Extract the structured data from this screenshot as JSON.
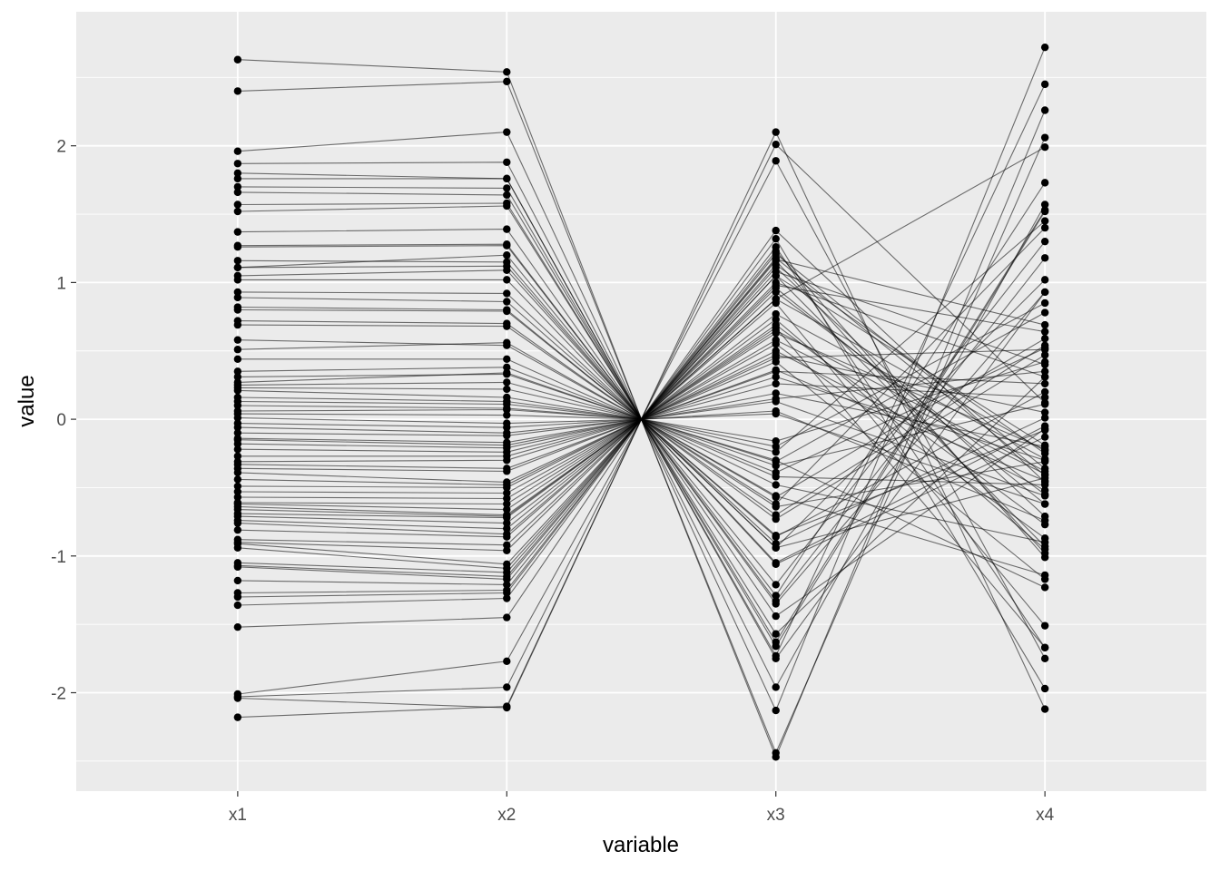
{
  "chart_data": {
    "type": "line",
    "subtype": "parallel-coordinates",
    "xlabel": "variable",
    "ylabel": "value",
    "categories": [
      "x1",
      "x2",
      "x3",
      "x4"
    ],
    "x_positions": [
      1,
      2,
      3,
      4
    ],
    "xlim": [
      0.4,
      4.6
    ],
    "ylim": [
      -2.72,
      2.98
    ],
    "y_ticks": [
      -2,
      -1,
      0,
      1,
      2
    ],
    "y_tick_labels": [
      "-2",
      "-1",
      "0",
      "1",
      "2"
    ],
    "grid": true,
    "legend": "none",
    "colors": {
      "panel": "#ebebeb",
      "grid": "#ffffff",
      "line": "#000000",
      "point": "#000000"
    },
    "series": [
      {
        "values": [
          2.63,
          2.54,
          0.63,
          -0.22
        ]
      },
      {
        "values": [
          2.4,
          2.47,
          -0.39,
          0.52
        ]
      },
      {
        "values": [
          1.96,
          2.1,
          -1.57,
          0.31
        ]
      },
      {
        "values": [
          1.87,
          1.88,
          1.05,
          -0.93
        ]
      },
      {
        "values": [
          1.8,
          1.76,
          -0.62,
          1.4
        ]
      },
      {
        "values": [
          1.76,
          1.76,
          1.38,
          -0.46
        ]
      },
      {
        "values": [
          1.7,
          1.69,
          0.98,
          0.64
        ]
      },
      {
        "values": [
          1.66,
          1.64,
          -2.44,
          2.06
        ]
      },
      {
        "values": [
          1.57,
          1.58,
          0.31,
          -0.3
        ]
      },
      {
        "values": [
          1.52,
          1.56,
          2.01,
          0.12
        ]
      },
      {
        "values": [
          1.37,
          1.39,
          -0.3,
          -1.23
        ]
      },
      {
        "values": [
          1.27,
          1.28,
          0.88,
          -0.23
        ]
      },
      {
        "values": [
          1.26,
          1.27,
          -1.33,
          1.18
        ]
      },
      {
        "values": [
          1.16,
          1.15,
          -0.42,
          -0.48
        ]
      },
      {
        "values": [
          1.11,
          1.12,
          1.08,
          0.4
        ]
      },
      {
        "values": [
          1.05,
          1.09,
          0.55,
          -0.87
        ]
      },
      {
        "values": [
          1.02,
          1.02,
          -0.86,
          0.2
        ]
      },
      {
        "values": [
          0.93,
          0.92,
          1.21,
          -0.36
        ]
      },
      {
        "values": [
          0.89,
          0.86,
          -1.63,
          1.53
        ]
      },
      {
        "values": [
          0.82,
          0.8,
          0.04,
          -0.62
        ]
      },
      {
        "values": [
          0.8,
          0.79,
          -0.2,
          0.85
        ]
      },
      {
        "values": [
          0.72,
          0.7,
          1.26,
          -1.67
        ]
      },
      {
        "values": [
          0.69,
          0.68,
          0.47,
          0.05
        ]
      },
      {
        "values": [
          0.51,
          0.56,
          -1.06,
          -0.13
        ]
      },
      {
        "values": [
          0.44,
          0.44,
          0.69,
          -0.77
        ]
      },
      {
        "values": [
          0.35,
          0.38,
          -0.57,
          0.59
        ]
      },
      {
        "values": [
          0.31,
          0.33,
          1.16,
          -0.98
        ]
      },
      {
        "values": [
          0.25,
          0.27,
          0.15,
          0.35
        ]
      },
      {
        "values": [
          0.23,
          0.22,
          -1.44,
          -0.07
        ]
      },
      {
        "values": [
          0.21,
          0.16,
          0.88,
          1.99
        ]
      },
      {
        "values": [
          0.13,
          0.11,
          0.58,
          -0.4
        ]
      },
      {
        "values": [
          0.1,
          0.08,
          -0.73,
          0.47
        ]
      },
      {
        "values": [
          0.04,
          0.03,
          0.13,
          -0.56
        ]
      },
      {
        "values": [
          0.01,
          -0.03,
          1.05,
          -0.19
        ]
      },
      {
        "values": [
          -0.03,
          -0.06,
          -0.31,
          0.78
        ]
      },
      {
        "values": [
          -0.06,
          -0.1,
          0.42,
          -1.17
        ]
      },
      {
        "values": [
          -0.1,
          -0.12,
          -0.94,
          1.02
        ]
      },
      {
        "values": [
          -0.14,
          -0.17,
          0.77,
          -0.29
        ]
      },
      {
        "values": [
          -0.18,
          -0.21,
          -1.73,
          2.45
        ]
      },
      {
        "values": [
          -0.22,
          -0.24,
          0.96,
          -0.62
        ]
      },
      {
        "values": [
          -0.27,
          -0.27,
          0.26,
          0.16
        ]
      },
      {
        "values": [
          -0.31,
          -0.3,
          -0.48,
          -0.9
        ]
      },
      {
        "values": [
          -0.33,
          -0.36,
          1.17,
          0.69
        ]
      },
      {
        "values": [
          -0.36,
          -0.38,
          -1.05,
          -0.05
        ]
      },
      {
        "values": [
          -0.39,
          -0.46,
          0.85,
          -1.51
        ]
      },
      {
        "values": [
          -0.49,
          -0.5,
          -0.16,
          0.42
        ]
      },
      {
        "values": [
          -0.53,
          -0.54,
          0.65,
          -0.38
        ]
      },
      {
        "values": [
          -0.57,
          -0.58,
          -1.96,
          1.57
        ]
      },
      {
        "values": [
          -0.61,
          -0.62,
          1.11,
          -0.71
        ]
      },
      {
        "values": [
          -0.62,
          -0.66,
          0.35,
          0.26
        ]
      },
      {
        "values": [
          -0.64,
          -0.7,
          -0.64,
          -0.31
        ]
      },
      {
        "values": [
          -0.66,
          -0.71,
          1.32,
          -1.97
        ]
      },
      {
        "values": [
          -0.69,
          -0.72,
          -1.35,
          0.93
        ]
      },
      {
        "values": [
          -0.71,
          -0.76,
          0.5,
          -0.52
        ]
      },
      {
        "values": [
          -0.74,
          -0.8,
          -0.34,
          0.11
        ]
      },
      {
        "values": [
          -0.76,
          -0.84,
          0.73,
          -0.95
        ]
      },
      {
        "values": [
          -0.88,
          -0.92,
          -1.21,
          1.3
        ]
      },
      {
        "values": [
          -0.9,
          -0.96,
          1.13,
          -0.25
        ]
      },
      {
        "values": [
          -0.91,
          -1.06,
          0.06,
          -0.74
        ]
      },
      {
        "values": [
          -0.94,
          -1.09,
          -1.66,
          1.52
        ]
      },
      {
        "values": [
          -1.05,
          -1.12,
          1.0,
          0.31
        ]
      },
      {
        "values": [
          -1.07,
          -1.15,
          -0.56,
          -1.14
        ]
      },
      {
        "values": [
          -1.08,
          -1.17,
          0.45,
          0.51
        ]
      },
      {
        "values": [
          -1.18,
          -1.21,
          -2.13,
          2.72
        ]
      },
      {
        "values": [
          -1.27,
          -1.25,
          1.18,
          -0.41
        ]
      },
      {
        "values": [
          -1.3,
          -1.27,
          -0.85,
          -0.08
        ]
      },
      {
        "values": [
          -1.36,
          -1.31,
          0.67,
          -1.67
        ]
      },
      {
        "values": [
          -1.52,
          -1.45,
          -1.75,
          0.93
        ]
      },
      {
        "values": [
          -2.01,
          -1.77,
          1.89,
          -1.75
        ]
      },
      {
        "values": [
          -2.03,
          -1.96,
          -2.47,
          2.26
        ]
      },
      {
        "values": [
          -2.04,
          -2.11,
          2.1,
          -2.12
        ]
      },
      {
        "values": [
          -2.18,
          -2.1,
          0.19,
          -0.2
        ]
      },
      {
        "values": [
          0.27,
          0.34,
          -0.24,
          1.45
        ]
      },
      {
        "values": [
          0.06,
          0.07,
          -0.7,
          0.54
        ]
      },
      {
        "values": [
          -0.44,
          -0.48,
          0.93,
          -0.55
        ]
      },
      {
        "values": [
          -0.81,
          -0.86,
          -0.94,
          -0.43
        ]
      },
      {
        "values": [
          1.11,
          1.2,
          -0.91,
          0.01
        ]
      },
      {
        "values": [
          0.58,
          0.54,
          0.36,
          -0.45
        ]
      },
      {
        "values": [
          -0.15,
          -0.19,
          -1.29,
          1.73
        ]
      },
      {
        "values": [
          0.16,
          0.13,
          1.23,
          -1.01
        ]
      }
    ]
  }
}
